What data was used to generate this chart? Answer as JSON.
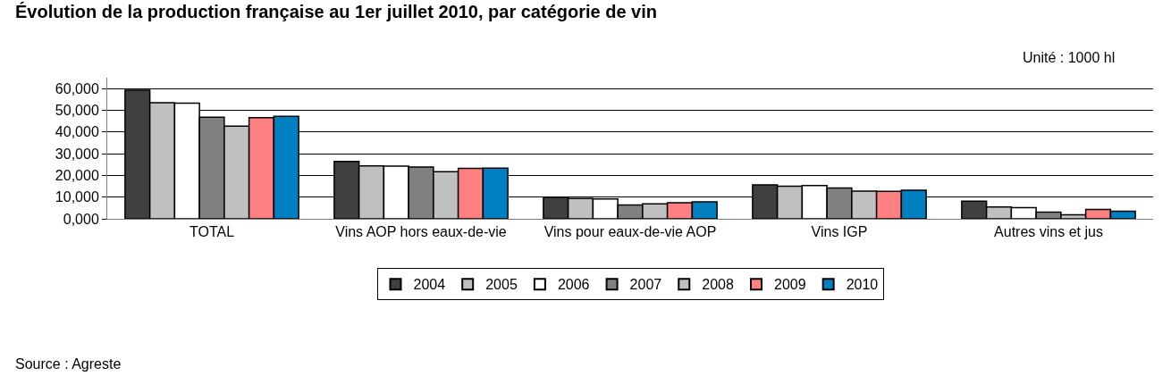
{
  "chart_data": {
    "type": "bar",
    "title": "Évolution de la production française au 1er juillet 2010, par catégorie de vin",
    "annotations": [
      "Unité : 1000 hl",
      "Source : Agreste"
    ],
    "categories": [
      "TOTAL",
      "Vins AOP hors eaux-de-vie",
      "Vins pour eaux-de-vie AOP",
      "Vins IGP",
      "Autres vins et jus"
    ],
    "series": [
      {
        "name": "2004",
        "color": "#404040",
        "values": [
          59200,
          26400,
          10000,
          15600,
          8100
        ]
      },
      {
        "name": "2005",
        "color": "#c0c0c0",
        "values": [
          53500,
          24400,
          9400,
          15000,
          5400
        ]
      },
      {
        "name": "2006",
        "color": "#ffffff",
        "values": [
          53300,
          24300,
          9200,
          15300,
          5100
        ]
      },
      {
        "name": "2007",
        "color": "#808080",
        "values": [
          46800,
          23900,
          6400,
          14200,
          3100
        ]
      },
      {
        "name": "2008",
        "color": "#c0c0c0",
        "values": [
          42700,
          21700,
          6900,
          12800,
          1900
        ]
      },
      {
        "name": "2009",
        "color": "#ff8080",
        "values": [
          46600,
          23200,
          7400,
          12600,
          4300
        ]
      },
      {
        "name": "2010",
        "color": "#0080c0",
        "values": [
          47200,
          23300,
          7800,
          13200,
          3500
        ]
      }
    ],
    "ylim": [
      0,
      65000
    ],
    "yticks": [
      {
        "value": 0,
        "label": "0,000"
      },
      {
        "value": 10000,
        "label": "10,000"
      },
      {
        "value": 20000,
        "label": "20,000"
      },
      {
        "value": 30000,
        "label": "30,000"
      },
      {
        "value": 40000,
        "label": "40,000"
      },
      {
        "value": 50000,
        "label": "50,000"
      },
      {
        "value": 60000,
        "label": "60,000"
      }
    ],
    "grid": "y",
    "legend": "bottom"
  }
}
